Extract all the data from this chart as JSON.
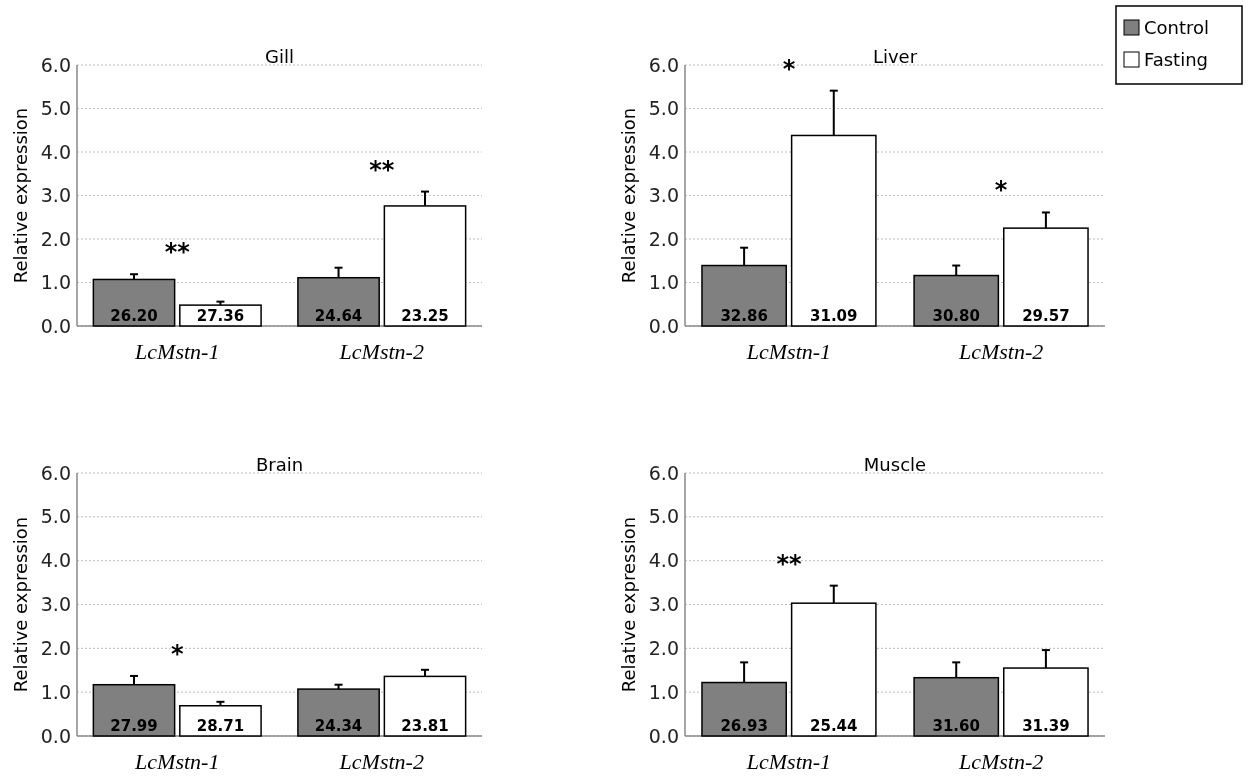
{
  "chart_data": [
    {
      "type": "bar",
      "title": "Gill",
      "ylabel": "Relative expression",
      "categories": [
        "LcMstn-1",
        "LcMstn-2"
      ],
      "ylim": [
        0,
        6
      ],
      "yticks": [
        {
          "value": 0,
          "label": "0.0"
        },
        {
          "value": 1,
          "label": "1.0"
        },
        {
          "value": 2,
          "label": "2.0"
        },
        {
          "value": 3,
          "label": "3.0"
        },
        {
          "value": 4,
          "label": "4.0"
        },
        {
          "value": 5,
          "label": "5.0"
        },
        {
          "value": 6,
          "label": "6.0"
        }
      ],
      "grid": "y",
      "legend": false,
      "series": [
        {
          "color": "#808080",
          "values": [
            1.07,
            1.11
          ],
          "errors": [
            [
              1.07,
              1.19
            ],
            [
              1.11,
              1.34
            ]
          ]
        },
        {
          "color": "#ffffff",
          "values": [
            0.48,
            2.76
          ],
          "errors": [
            [
              0.48,
              0.56
            ],
            [
              2.76,
              3.09
            ]
          ]
        }
      ],
      "annotations": [
        "26.20",
        "24.64",
        "27.36",
        "23.25",
        "**",
        "**"
      ]
    },
    {
      "type": "bar",
      "title": "Liver",
      "ylabel": "Relative expression",
      "categories": [
        "LcMstn-1",
        "LcMstn-2"
      ],
      "ylim": [
        0,
        6
      ],
      "yticks": [
        {
          "value": 0,
          "label": "0.0"
        },
        {
          "value": 1,
          "label": "1.0"
        },
        {
          "value": 2,
          "label": "2.0"
        },
        {
          "value": 3,
          "label": "3.0"
        },
        {
          "value": 4,
          "label": "4.0"
        },
        {
          "value": 5,
          "label": "5.0"
        },
        {
          "value": 6,
          "label": "6.0"
        }
      ],
      "grid": "y",
      "legend": "top right",
      "series": [
        {
          "name": "Control",
          "color": "#808080",
          "values": [
            1.39,
            1.16
          ],
          "errors": [
            [
              1.39,
              1.8
            ],
            [
              1.16,
              1.39
            ]
          ]
        },
        {
          "name": "Fasting",
          "color": "#ffffff",
          "values": [
            4.38,
            2.25
          ],
          "errors": [
            [
              4.38,
              5.41
            ],
            [
              2.25,
              2.61
            ]
          ]
        }
      ],
      "annotations": [
        "32.86",
        "30.80",
        "31.09",
        "29.57",
        "*",
        "*"
      ]
    },
    {
      "type": "bar",
      "title": "Brain",
      "ylabel": "Relative expression",
      "categories": [
        "LcMstn-1",
        "LcMstn-2"
      ],
      "ylim": [
        0,
        6
      ],
      "yticks": [
        {
          "value": 0,
          "label": "0.0"
        },
        {
          "value": 1,
          "label": "1.0"
        },
        {
          "value": 2,
          "label": "2.0"
        },
        {
          "value": 3,
          "label": "3.0"
        },
        {
          "value": 4,
          "label": "4.0"
        },
        {
          "value": 5,
          "label": "5.0"
        },
        {
          "value": 6,
          "label": "6.0"
        }
      ],
      "grid": "y",
      "legend": false,
      "series": [
        {
          "color": "#808080",
          "values": [
            1.17,
            1.07
          ],
          "errors": [
            [
              1.17,
              1.37
            ],
            [
              1.07,
              1.17
            ]
          ]
        },
        {
          "color": "#ffffff",
          "values": [
            0.69,
            1.36
          ],
          "errors": [
            [
              0.69,
              0.78
            ],
            [
              1.36,
              1.51
            ]
          ]
        }
      ],
      "annotations": [
        "27.99",
        "24.34",
        "28.71",
        "23.81",
        "*"
      ]
    },
    {
      "type": "bar",
      "title": "Muscle",
      "ylabel": "Relative expression",
      "categories": [
        "LcMstn-1",
        "LcMstn-2"
      ],
      "ylim": [
        0,
        6
      ],
      "yticks": [
        {
          "value": 0,
          "label": "0.0"
        },
        {
          "value": 1,
          "label": "1.0"
        },
        {
          "value": 2,
          "label": "2.0"
        },
        {
          "value": 3,
          "label": "3.0"
        },
        {
          "value": 4,
          "label": "4.0"
        },
        {
          "value": 5,
          "label": "5.0"
        },
        {
          "value": 6,
          "label": "6.0"
        }
      ],
      "grid": "y",
      "legend": false,
      "series": [
        {
          "color": "#808080",
          "values": [
            1.22,
            1.33
          ],
          "errors": [
            [
              1.22,
              1.68
            ],
            [
              1.33,
              1.68
            ]
          ]
        },
        {
          "color": "#ffffff",
          "values": [
            3.03,
            1.55
          ],
          "errors": [
            [
              3.03,
              3.43
            ],
            [
              1.55,
              1.96
            ]
          ]
        }
      ],
      "annotations": [
        "26.93",
        "31.60",
        "25.44",
        "31.39",
        "**"
      ]
    }
  ]
}
